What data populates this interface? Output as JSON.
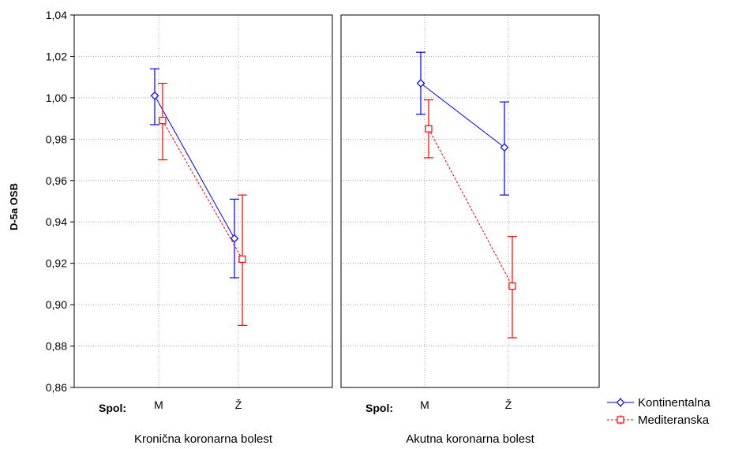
{
  "chart_data": {
    "type": "line",
    "ylabel": "D-5a OSB",
    "ylim": [
      0.86,
      1.04
    ],
    "yticks": [
      0.86,
      0.88,
      0.9,
      0.92,
      0.94,
      0.96,
      0.98,
      1.0,
      1.02,
      1.04
    ],
    "ytick_labels": [
      "0,86",
      "0,88",
      "0,90",
      "0,92",
      "0,94",
      "0,96",
      "0,98",
      "1,00",
      "1,02",
      "1,04"
    ],
    "grid": true,
    "legend_position": "bottom-right",
    "x_factor_label": "Spol:",
    "categories": [
      "M",
      "Ž"
    ],
    "panels": [
      {
        "title": "Kronična koronarna bolest",
        "series": [
          {
            "name": "Kontinentalna",
            "values": [
              1.001,
              0.932
            ],
            "lower": [
              0.987,
              0.913
            ],
            "upper": [
              1.014,
              0.951
            ]
          },
          {
            "name": "Mediteranska",
            "values": [
              0.989,
              0.922
            ],
            "lower": [
              0.97,
              0.89
            ],
            "upper": [
              1.007,
              0.953
            ]
          }
        ]
      },
      {
        "title": "Akutna koronarna bolest",
        "series": [
          {
            "name": "Kontinentalna",
            "values": [
              1.007,
              0.976
            ],
            "lower": [
              0.992,
              0.953
            ],
            "upper": [
              1.022,
              0.998
            ]
          },
          {
            "name": "Mediteranska",
            "values": [
              0.985,
              0.909
            ],
            "lower": [
              0.971,
              0.884
            ],
            "upper": [
              0.999,
              0.933
            ]
          }
        ]
      }
    ],
    "colors": {
      "Kontinentalna": "#0000ff",
      "Mediteranska": "#ff0000"
    },
    "markers": {
      "Kontinentalna": "diamond",
      "Mediteranska": "square"
    },
    "line_styles": {
      "Kontinentalna": "solid",
      "Mediteranska": "dashed"
    }
  }
}
